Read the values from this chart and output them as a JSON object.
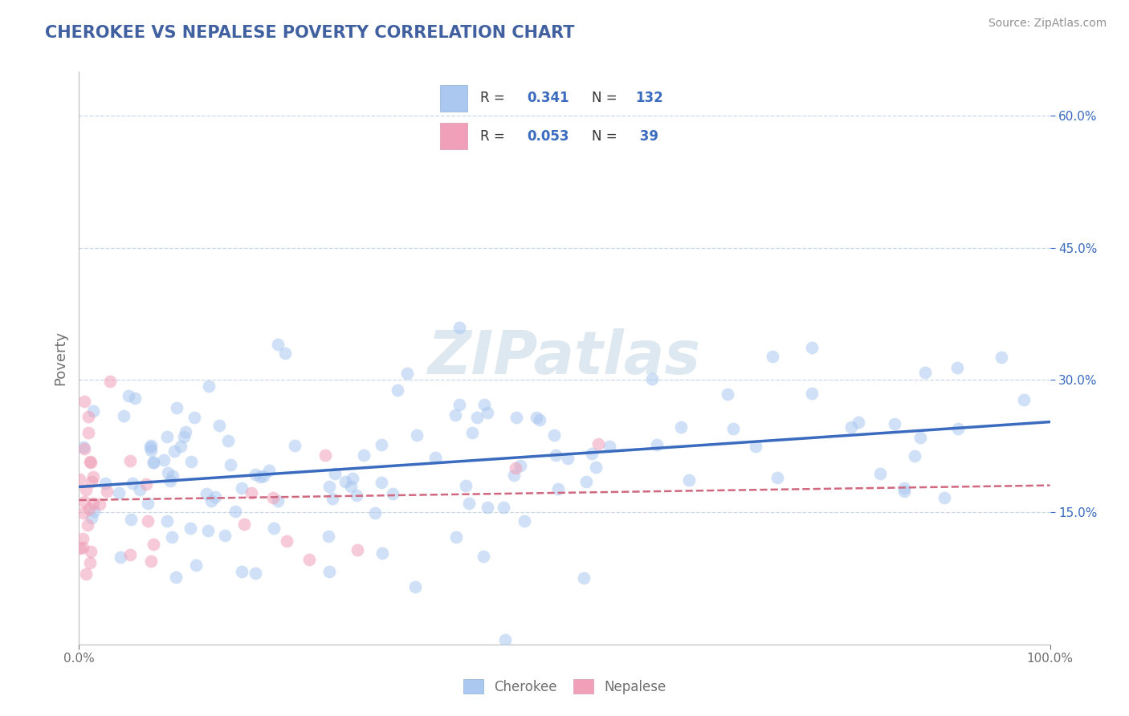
{
  "title": "CHEROKEE VS NEPALESE POVERTY CORRELATION CHART",
  "source": "Source: ZipAtlas.com",
  "ylabel": "Poverty",
  "xlim": [
    0,
    1.0
  ],
  "ylim": [
    0,
    0.65
  ],
  "xticks": [
    0.0,
    1.0
  ],
  "xtick_labels_left": "0.0%",
  "xtick_labels_right": "100.0%",
  "ytick_positions": [
    0.15,
    0.3,
    0.45,
    0.6
  ],
  "ytick_labels": [
    "15.0%",
    "30.0%",
    "45.0%",
    "60.0%"
  ],
  "cherokee_R": 0.341,
  "cherokee_N": 132,
  "nepalese_R": 0.053,
  "nepalese_N": 39,
  "cherokee_color": "#aac8f0",
  "nepalese_color": "#f0a0b8",
  "cherokee_line_color": "#3a6bbf",
  "nepalese_line_color": "#d06880",
  "grid_color": "#c8d8e8",
  "bg_color": "#ffffff",
  "watermark_text": "ZIPatlas",
  "watermark_color": "#dde8f0",
  "title_color": "#4060a0",
  "label_color": "#707070",
  "source_color": "#909090",
  "scatter_size": 130,
  "scatter_alpha": 0.55,
  "legend_text_color": "#333333",
  "legend_value_color": "#3a6bbf"
}
